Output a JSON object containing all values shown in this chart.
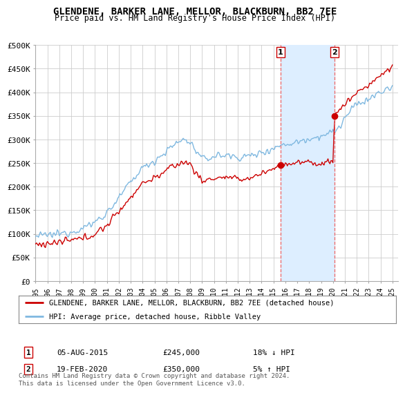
{
  "title": "GLENDENE, BARKER LANE, MELLOR, BLACKBURN, BB2 7EE",
  "subtitle": "Price paid vs. HM Land Registry's House Price Index (HPI)",
  "ylabel_ticks": [
    "£0",
    "£50K",
    "£100K",
    "£150K",
    "£200K",
    "£250K",
    "£300K",
    "£350K",
    "£400K",
    "£450K",
    "£500K"
  ],
  "ytick_values": [
    0,
    50000,
    100000,
    150000,
    200000,
    250000,
    300000,
    350000,
    400000,
    450000,
    500000
  ],
  "ylim": [
    0,
    500000
  ],
  "xlim_start": 1995.0,
  "xlim_end": 2025.5,
  "purchase1_date": 2015.59,
  "purchase1_price": 245000,
  "purchase2_date": 2020.12,
  "purchase2_price": 350000,
  "hpi_color": "#7fb8e0",
  "price_color": "#cc0000",
  "vline_color": "#ee6666",
  "span_color": "#ddeeff",
  "background_color": "#ffffff",
  "grid_color": "#cccccc",
  "legend_entry1": "GLENDENE, BARKER LANE, MELLOR, BLACKBURN, BB2 7EE (detached house)",
  "legend_entry2": "HPI: Average price, detached house, Ribble Valley",
  "annotation1_date": "05-AUG-2015",
  "annotation1_price": "£245,000",
  "annotation1_hpi": "18% ↓ HPI",
  "annotation2_date": "19-FEB-2020",
  "annotation2_price": "£350,000",
  "annotation2_hpi": "5% ↑ HPI",
  "footer": "Contains HM Land Registry data © Crown copyright and database right 2024.\nThis data is licensed under the Open Government Licence v3.0.",
  "xtick_years": [
    1995,
    1996,
    1997,
    1998,
    1999,
    2000,
    2001,
    2002,
    2003,
    2004,
    2005,
    2006,
    2007,
    2008,
    2009,
    2010,
    2011,
    2012,
    2013,
    2014,
    2015,
    2016,
    2017,
    2018,
    2019,
    2020,
    2021,
    2022,
    2023,
    2024,
    2025
  ]
}
